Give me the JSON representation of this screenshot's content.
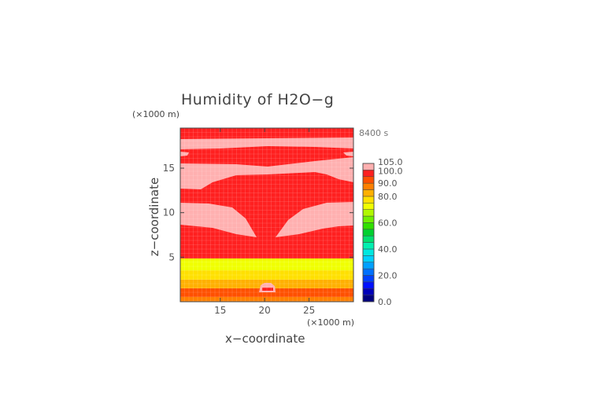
{
  "chart_data": {
    "type": "heatmap",
    "title": "Humidity of H2O−g",
    "time_label": "8400 s",
    "xlabel": "x−coordinate",
    "ylabel": "z−coordinate",
    "x_unit": "(×1000 m)",
    "z_unit": "(×1000 m)",
    "xlim": [
      10.5,
      30
    ],
    "ylim": [
      0,
      19.5
    ],
    "x_ticks": [
      15,
      20,
      25
    ],
    "y_ticks": [
      5,
      10,
      15
    ],
    "grid": true,
    "colorbar": {
      "position": "right",
      "levels": [
        0,
        5,
        10,
        15,
        20,
        25,
        30,
        35,
        40,
        45,
        50,
        55,
        60,
        65,
        70,
        75,
        80,
        85,
        90,
        95,
        100,
        105
      ],
      "tick_labels": [
        "0.0",
        "20.0",
        "40.0",
        "60.0",
        "80.0",
        "90.0",
        "100.0",
        "105.0"
      ],
      "colors": [
        "#00007f",
        "#0000b8",
        "#0010ff",
        "#0040ff",
        "#0070ff",
        "#00a0ff",
        "#00d0ff",
        "#00e8e0",
        "#00f0b0",
        "#00e070",
        "#00d030",
        "#30e000",
        "#70f000",
        "#b0f800",
        "#f0ff00",
        "#ffe000",
        "#ffb000",
        "#ff8000",
        "#ff5000",
        "#ff2020",
        "#ffb0b0"
      ]
    },
    "regions": [
      {
        "z_range": [
          0,
          0.5
        ],
        "x_range": "all",
        "humidity": "90–100",
        "color": "#ff8000"
      },
      {
        "z_range": [
          0.5,
          1.5
        ],
        "x_range": "all",
        "humidity": "90–100",
        "color": "#ff5000"
      },
      {
        "z_range": [
          1.5,
          2.5
        ],
        "x_range": "all",
        "humidity": "80–90",
        "color": "#ffb000"
      },
      {
        "z_range": [
          2.5,
          3.5
        ],
        "x_range": "all",
        "humidity": "70–80",
        "color": "#ffe000"
      },
      {
        "z_range": [
          3.5,
          5
        ],
        "x_range": "all",
        "humidity": "70–80",
        "color": "#f0ff00"
      },
      {
        "z_range": [
          5,
          19.5
        ],
        "x_range": "all",
        "humidity": "95–100",
        "color": "#ff2020"
      },
      {
        "feature": "saturated patch near ground",
        "z_range": [
          1,
          2.5
        ],
        "x_range": [
          19.5,
          20.5
        ],
        "humidity": ">100",
        "color": "#ffb0b0"
      },
      {
        "feature": "supersaturated wedges",
        "z_range": [
          8,
          11
        ],
        "x_range": "left and right sides",
        "humidity": ">100",
        "color": "#ffb0b0"
      },
      {
        "feature": "supersaturated band",
        "z_range": [
          13,
          16
        ],
        "x_range": "all",
        "humidity": ">100",
        "color": "#ffb0b0"
      },
      {
        "feature": "supersaturated top band",
        "z_range": [
          17,
          18
        ],
        "x_range": "all",
        "humidity": ">100",
        "color": "#ffb0b0"
      }
    ]
  }
}
